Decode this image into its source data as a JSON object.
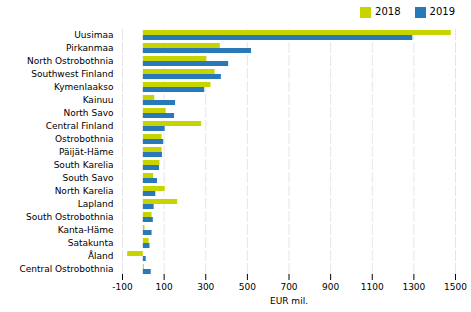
{
  "chart_data": {
    "type": "bar",
    "orientation": "horizontal",
    "categories": [
      "Uusimaa",
      "Pirkanmaa",
      "North Ostrobothnia",
      "Southwest Finland",
      "Kymenlaakso",
      "Kainuu",
      "North Savo",
      "Central Finland",
      "Ostrobothnia",
      "Päijät-Häme",
      "South Karelia",
      "South Savo",
      "North Karelia",
      "Lapland",
      "South Ostrobothnia",
      "Kanta-Häme",
      "Satakunta",
      "Åland",
      "Central Ostrobothnia"
    ],
    "series": [
      {
        "name": "2018",
        "color": "#c8d400",
        "values": [
          1480,
          370,
          305,
          345,
          325,
          55,
          110,
          280,
          90,
          90,
          80,
          50,
          105,
          165,
          42,
          8,
          28,
          -75,
          5
        ]
      },
      {
        "name": "2019",
        "color": "#2979b8",
        "values": [
          1295,
          520,
          410,
          375,
          295,
          155,
          150,
          105,
          98,
          92,
          78,
          68,
          60,
          52,
          48,
          42,
          32,
          14,
          38
        ]
      }
    ],
    "xlabel": "EUR mil.",
    "xlim": [
      -100,
      1500
    ],
    "xticks": [
      -100,
      100,
      300,
      500,
      700,
      900,
      1100,
      1300,
      1500
    ],
    "grid": true,
    "legend": "upper right"
  }
}
